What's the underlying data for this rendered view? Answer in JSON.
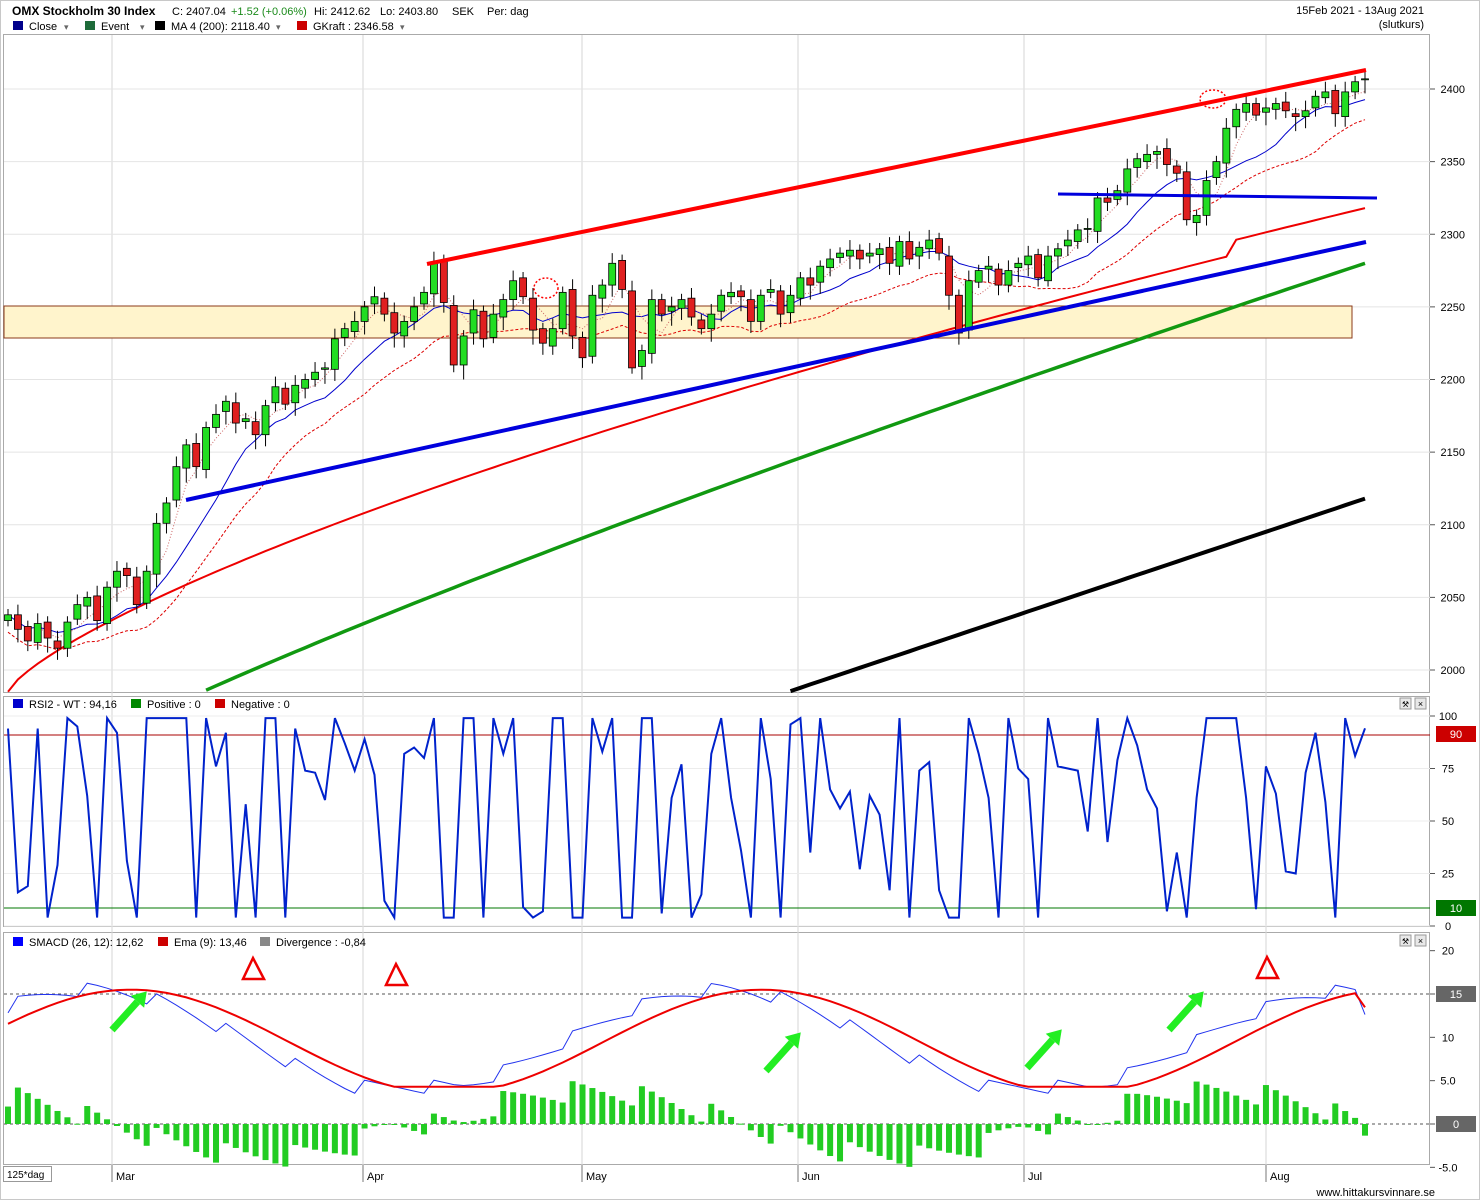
{
  "header": {
    "title": "OMX Stockholm 30 Index",
    "close": "C: 2407.04",
    "change": "+1.52 (+0.06%)",
    "high": "Hi: 2412.62",
    "low": "Lo: 2403.80",
    "currency": "SEK",
    "period": "Per: dag",
    "date_range": "15Feb 2021 - 13Aug 2021",
    "price_type": "(slutkurs)"
  },
  "legend_main": [
    {
      "label": "Close",
      "color": "#00008b"
    },
    {
      "label": "Event",
      "color": "#1e6b3a"
    },
    {
      "label": "MA 4 (200): 2118.40",
      "color": "#000000"
    },
    {
      "label": "GKraft : 2346.58",
      "color": "#cc0000"
    }
  ],
  "legend_rsi": [
    {
      "label": "RSI2 - WT : 94,16",
      "color": "#0000cc"
    },
    {
      "label": "Positive : 0",
      "color": "#008800"
    },
    {
      "label": "Negative : 0",
      "color": "#cc0000"
    }
  ],
  "legend_macd": [
    {
      "label": "SMACD (26, 12): 12,62",
      "color": "#0000ff"
    },
    {
      "label": "Ema (9): 13,46",
      "color": "#cc0000"
    },
    {
      "label": "Divergence : -0,84",
      "color": "#888888"
    }
  ],
  "x_axis": {
    "period_label": "125*dag",
    "months": [
      "Mar",
      "Apr",
      "May",
      "Jun",
      "Jul",
      "Aug"
    ]
  },
  "y_axis_main": [
    "2400",
    "2350",
    "2300",
    "2250",
    "2200",
    "2150",
    "2100",
    "2050",
    "2000"
  ],
  "y_axis_rsi": [
    "100",
    "75",
    "50",
    "25",
    "0"
  ],
  "y_axis_macd": [
    "20",
    "15",
    "10",
    "5.0",
    "0",
    "-5.0"
  ],
  "rsi_levels": {
    "upper": "90",
    "lower": "10"
  },
  "macd_level": {
    "upper": "15",
    "zero": "0"
  },
  "footer": {
    "website": "www.hittakursvinnare.se"
  },
  "colors": {
    "up": "#22dd22",
    "down": "#e02020",
    "trend_red": "#ff0000",
    "trend_blue": "#0000dd",
    "ma_green": "#119911",
    "ma_black": "#000000",
    "zone_fill": "#fff4cc"
  },
  "chart_data": {
    "type": "candlestick",
    "period": "2021-02-15 to 2021-08-13",
    "ohlc_closes": [
      2038,
      2028,
      2020,
      2032,
      2022,
      2015,
      2033,
      2045,
      2050,
      2034,
      2057,
      2068,
      2065,
      2045,
      2068,
      2101,
      2115,
      2140,
      2155,
      2140,
      2167,
      2176,
      2185,
      2170,
      2173,
      2162,
      2182,
      2195,
      2183,
      2196,
      2200,
      2205,
      2208,
      2228,
      2235,
      2240,
      2250,
      2257,
      2245,
      2232,
      2240,
      2250,
      2260,
      2281,
      2253,
      2210,
      2230,
      2248,
      2228,
      2245,
      2255,
      2268,
      2257,
      2234,
      2225,
      2235,
      2260,
      2230,
      2215,
      2258,
      2265,
      2280,
      2262,
      2208,
      2220,
      2255,
      2245,
      2250,
      2255,
      2243,
      2235,
      2245,
      2258,
      2260,
      2257,
      2240,
      2258,
      2262,
      2245,
      2258,
      2270,
      2265,
      2278,
      2283,
      2287,
      2289,
      2283,
      2287,
      2290,
      2280,
      2295,
      2283,
      2291,
      2296,
      2287,
      2258,
      2232,
      2268,
      2275,
      2278,
      2265,
      2275,
      2280,
      2285,
      2270,
      2285,
      2290,
      2296,
      2303,
      2304,
      2325,
      2322,
      2330,
      2345,
      2352,
      2355,
      2357,
      2348,
      2342,
      2310,
      2313,
      2337,
      2350,
      2373,
      2386,
      2390,
      2382,
      2387,
      2390,
      2385,
      2381,
      2385,
      2395,
      2398,
      2383,
      2398,
      2405,
      2407
    ],
    "ma200_end": 2118.4,
    "gkraft_end": 2346.58,
    "rsi2_last": 94.16,
    "smacd_last": 12.62,
    "ema9_last": 13.46,
    "divergence_last": -0.84,
    "ylim_main": [
      1985,
      2425
    ],
    "ylim_rsi": [
      0,
      100
    ],
    "ylim_macd": [
      -5,
      20
    ]
  }
}
